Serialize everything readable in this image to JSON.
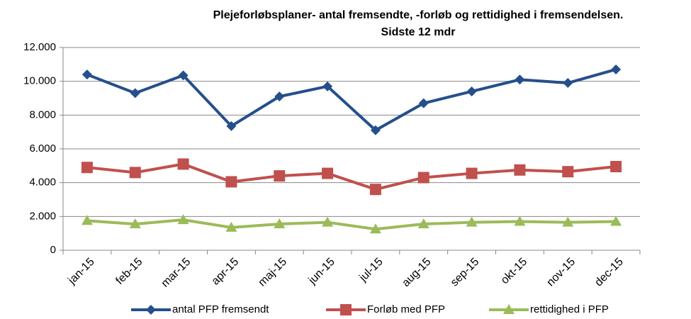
{
  "chart_data": {
    "type": "line",
    "title": [
      "Plejeforløbsplaner- antal  fremsendte, -forløb og rettidighed i fremsendelsen.",
      "Sidste 12 mdr"
    ],
    "categories": [
      "jan-15",
      "feb-15",
      "mar-15",
      "apr-15",
      "maj-15",
      "jun-15",
      "jul-15",
      "aug-15",
      "sep-15",
      "okt-15",
      "nov-15",
      "dec-15"
    ],
    "series": [
      {
        "name": "antal PFP fremsendt",
        "color": "#254f8c",
        "marker": "diamond",
        "values": [
          10400,
          9300,
          10350,
          7350,
          9100,
          9700,
          7100,
          8700,
          9400,
          10100,
          9900,
          10700
        ]
      },
      {
        "name": "Forløb med PFP",
        "color": "#c0504d",
        "marker": "square",
        "values": [
          4900,
          4600,
          5100,
          4050,
          4400,
          4550,
          3600,
          4300,
          4550,
          4750,
          4650,
          4950
        ]
      },
      {
        "name": "rettidighed i PFP",
        "color": "#9bbb59",
        "marker": "triangle",
        "values": [
          1750,
          1550,
          1800,
          1350,
          1550,
          1650,
          1250,
          1550,
          1650,
          1700,
          1650,
          1700
        ]
      }
    ],
    "ylim": [
      0,
      12000
    ],
    "yticks": [
      0,
      {
        "value": 2000,
        "label": "2.000"
      },
      {
        "value": 4000,
        "label": "4.000"
      },
      {
        "value": 6000,
        "label": "6.000"
      },
      {
        "value": 8000,
        "label": "8.000"
      },
      {
        "value": 10000,
        "label": "10.000"
      },
      {
        "value": 12000,
        "label": "12.000"
      }
    ],
    "grid": true,
    "legend": "bottom"
  }
}
